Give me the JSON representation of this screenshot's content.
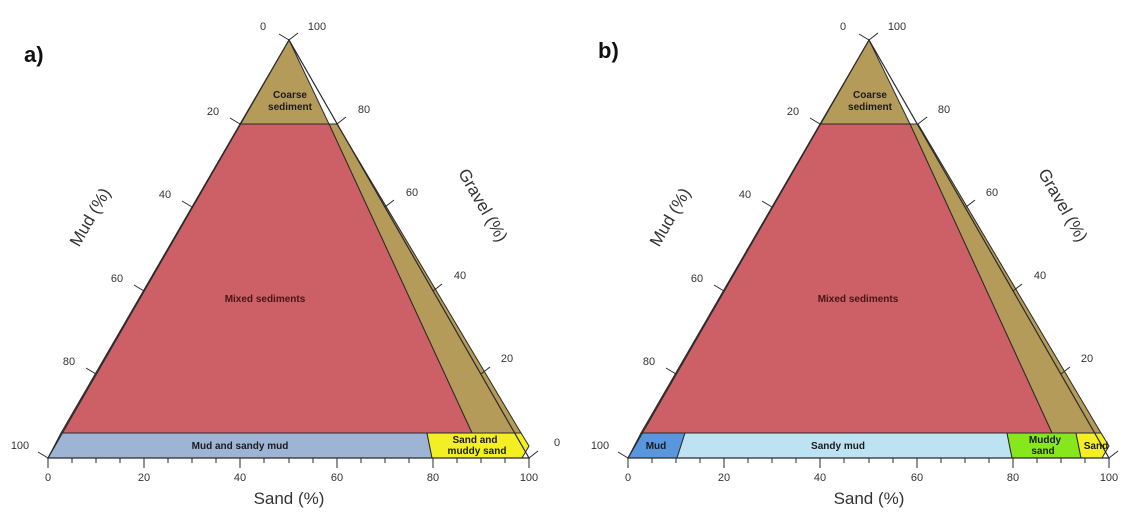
{
  "panels": [
    {
      "label": "a)",
      "axis_titles": {
        "mud": "Mud (%)",
        "gravel": "Gravel (%)",
        "sand": "Sand (%)"
      },
      "left_ticks": [
        "0",
        "20",
        "40",
        "60",
        "80",
        "100"
      ],
      "right_ticks": [
        "100",
        "80",
        "60",
        "40",
        "20",
        "0"
      ],
      "bottom_ticks": [
        "0",
        "20",
        "40",
        "60",
        "80",
        "100"
      ],
      "regions": [
        {
          "id": "coarse",
          "label_lines": [
            "Coarse",
            "sediment"
          ],
          "color": "#b59b5a"
        },
        {
          "id": "mixed",
          "label_lines": [
            "Mixed sediments"
          ],
          "color": "#cc6066"
        },
        {
          "id": "mud-sandy-mud",
          "label_lines": [
            "Mud and sandy mud"
          ],
          "color": "#9db4d4"
        },
        {
          "id": "sand-muddy-sand",
          "label_lines": [
            "Sand and",
            "muddy sand"
          ],
          "color": "#f4ef24"
        }
      ]
    },
    {
      "label": "b)",
      "axis_titles": {
        "mud": "Mud (%)",
        "gravel": "Gravel (%)",
        "sand": "Sand (%)"
      },
      "left_ticks": [
        "0",
        "20",
        "40",
        "60",
        "80",
        "100"
      ],
      "right_ticks": [
        "100",
        "80",
        "60",
        "40",
        "20"
      ],
      "bottom_ticks": [
        "0",
        "20",
        "40",
        "60",
        "80",
        "100"
      ],
      "regions": [
        {
          "id": "coarse",
          "label_lines": [
            "Coarse",
            "sediment"
          ],
          "color": "#b59b5a"
        },
        {
          "id": "mixed",
          "label_lines": [
            "Mixed sediments"
          ],
          "color": "#cc6066"
        },
        {
          "id": "mud",
          "label_lines": [
            "Mud"
          ],
          "color": "#5a96de"
        },
        {
          "id": "sandy-mud",
          "label_lines": [
            "Sandy mud"
          ],
          "color": "#bde3f3"
        },
        {
          "id": "muddy-sand",
          "label_lines": [
            "Muddy",
            "sand"
          ],
          "color": "#86e81c"
        },
        {
          "id": "sand",
          "label_lines": [
            "Sand"
          ],
          "color": "#f4ef24"
        }
      ]
    }
  ]
}
